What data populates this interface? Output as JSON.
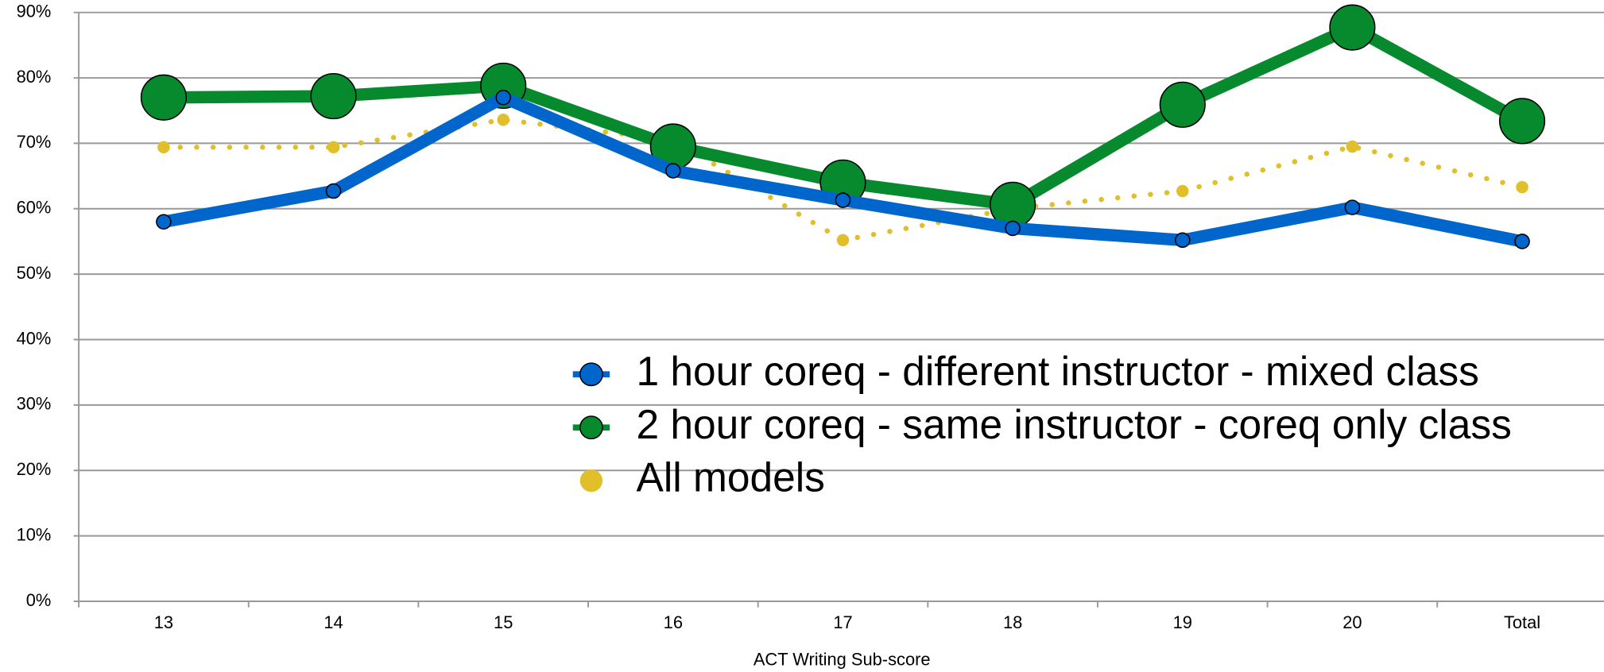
{
  "chart_data": {
    "type": "line",
    "x_label": "ACT Writing Sub-score",
    "categories": [
      "13",
      "14",
      "15",
      "16",
      "17",
      "18",
      "19",
      "20",
      "Total"
    ],
    "series": [
      {
        "name": "1 hour coreq - different instructor - mixed class",
        "color": "#0066cc",
        "values": [
          58,
          62.7,
          77,
          65.8,
          61.3,
          57,
          55.2,
          60.2,
          55
        ]
      },
      {
        "name": "2 hour coreq - same instructor - coreq only class",
        "color": "#07892d",
        "values": [
          77,
          77.2,
          78.8,
          69.5,
          64,
          60.6,
          75.9,
          87.7,
          73.4
        ]
      },
      {
        "name": "All models",
        "color": "#e0bf2a",
        "values": [
          69.4,
          69.4,
          73.6,
          70.5,
          55.2,
          60,
          62.7,
          69.5,
          63.3
        ]
      }
    ],
    "ylim": [
      0,
      90
    ],
    "yticks": [
      {
        "value": 0,
        "label": "0%"
      },
      {
        "value": 10,
        "label": "10%"
      },
      {
        "value": 20,
        "label": "20%"
      },
      {
        "value": 30,
        "label": "30%"
      },
      {
        "value": 40,
        "label": "40%"
      },
      {
        "value": 50,
        "label": "50%"
      },
      {
        "value": 60,
        "label": "60%"
      },
      {
        "value": 70,
        "label": "70%"
      },
      {
        "value": 80,
        "label": "80%"
      },
      {
        "value": 90,
        "label": "90%"
      }
    ],
    "grid": true,
    "legend": "center-right"
  }
}
